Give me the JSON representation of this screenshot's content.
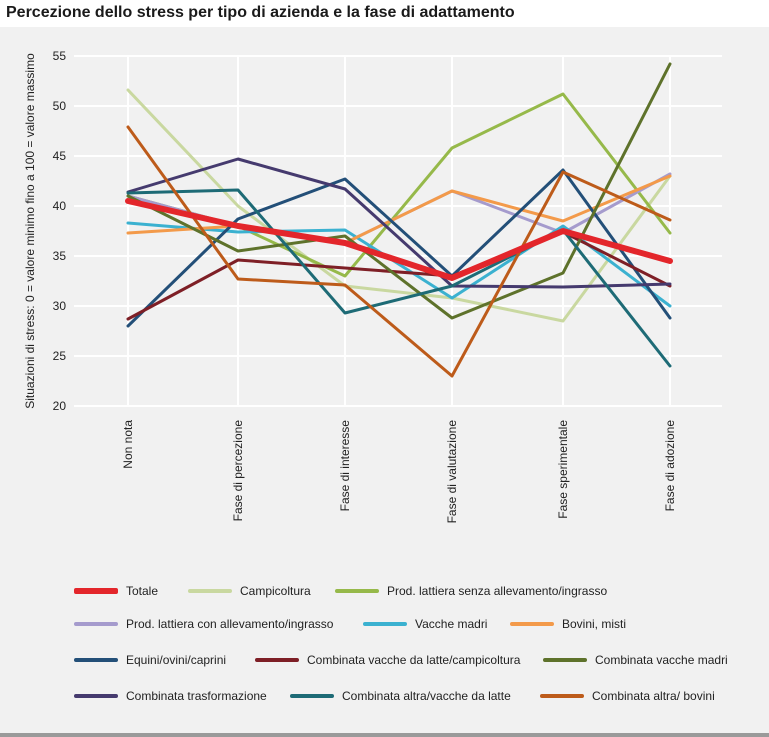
{
  "chart_data": {
    "type": "line",
    "title": "Percezione dello stress per tipo di azienda e la fase di adattamento",
    "ylabel": "Situazioni di stress: 0 = valore minimo fino a 100 = valore massimo",
    "xlabel": "",
    "categories": [
      "Non nota",
      "Fase di percezione",
      "Fase di interesse",
      "Fase di valutazione",
      "Fase sperimentale",
      "Fase di adozione"
    ],
    "ylim": [
      20,
      55
    ],
    "yticks": [
      20,
      25,
      30,
      35,
      40,
      45,
      50,
      55
    ],
    "grid": true,
    "legend_position": "bottom",
    "series": [
      {
        "name": "Totale",
        "color": "#e3262b",
        "values": [
          40.5,
          38.0,
          36.3,
          32.8,
          37.5,
          34.5
        ]
      },
      {
        "name": "Campicoltura",
        "color": "#c9d8a0",
        "values": [
          51.6,
          40.0,
          32.0,
          30.8,
          28.5,
          43.0
        ]
      },
      {
        "name": "Prod. lattiera senza allevamento/ingrasso",
        "color": "#96b94a",
        "values": [
          41.0,
          38.0,
          33.0,
          45.8,
          51.2,
          37.3
        ]
      },
      {
        "name": "Prod. lattiera con allevamento/ingrasso",
        "color": "#a59bcd",
        "values": [
          41.0,
          38.0,
          36.3,
          41.5,
          37.3,
          43.2
        ]
      },
      {
        "name": "Vacche madri",
        "color": "#3bb1d0",
        "values": [
          38.3,
          37.4,
          37.6,
          30.8,
          38.0,
          30.0
        ]
      },
      {
        "name": "Bovini, misti",
        "color": "#f39a4a",
        "values": [
          37.3,
          38.0,
          36.3,
          41.5,
          38.5,
          43.0
        ]
      },
      {
        "name": "Equini/ovini/caprini",
        "color": "#234f78",
        "values": [
          28.0,
          38.7,
          42.7,
          33.0,
          43.6,
          28.8
        ]
      },
      {
        "name": "Combinata vacche da latte/campicoltura",
        "color": "#7e1f26",
        "values": [
          28.7,
          34.6,
          33.8,
          33.0,
          37.4,
          32.0
        ]
      },
      {
        "name": "Combinata vacche madri",
        "color": "#5e722b",
        "values": [
          41.0,
          35.5,
          37.0,
          28.8,
          33.3,
          54.2
        ]
      },
      {
        "name": "Combinata trasformazione",
        "color": "#453a6e",
        "values": [
          41.4,
          44.7,
          41.7,
          32.0,
          31.9,
          32.2
        ]
      },
      {
        "name": "Combinata altra/vacche da latte",
        "color": "#1e6b76",
        "values": [
          41.3,
          41.6,
          29.3,
          32.0,
          37.6,
          24.0
        ]
      },
      {
        "name": "Combinata altra/ bovini",
        "color": "#bd5b1a",
        "values": [
          47.9,
          32.7,
          32.1,
          23.0,
          43.4,
          38.6
        ]
      }
    ]
  }
}
